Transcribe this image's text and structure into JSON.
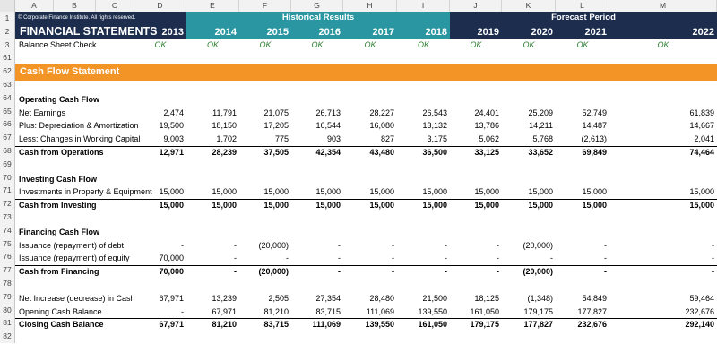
{
  "colors": {
    "navy": "#1c2d4e",
    "teal": "#2996a2",
    "orange": "#f29526",
    "ok_green": "#2e7d32"
  },
  "columns": [
    "A",
    "B",
    "C",
    "D",
    "E",
    "F",
    "G",
    "H",
    "I",
    "J",
    "K",
    "L",
    "M"
  ],
  "header": {
    "copyright": "© Corporate Finance Institute. All rights reserved.",
    "historical": "Historical Results",
    "forecast": "Forecast Period",
    "title": "FINANCIAL STATEMENTS",
    "years": [
      "2013",
      "2014",
      "2015",
      "2016",
      "2017",
      "2018",
      "2019",
      "2020",
      "2021",
      "2022"
    ]
  },
  "check": {
    "label": "Balance Sheet Check",
    "values": [
      "OK",
      "OK",
      "OK",
      "OK",
      "OK",
      "OK",
      "OK",
      "OK",
      "OK",
      "OK"
    ]
  },
  "section_title": "Cash Flow Statement",
  "rows": [
    {
      "num": "1"
    },
    {
      "num": "2"
    },
    {
      "num": "3"
    },
    {
      "num": "61"
    },
    {
      "num": "62"
    },
    {
      "num": "63"
    },
    {
      "num": "64"
    },
    {
      "num": "65"
    },
    {
      "num": "66"
    },
    {
      "num": "67"
    },
    {
      "num": "68"
    },
    {
      "num": "69"
    },
    {
      "num": "70"
    },
    {
      "num": "71"
    },
    {
      "num": "72"
    },
    {
      "num": "73"
    },
    {
      "num": "74"
    },
    {
      "num": "75"
    },
    {
      "num": "76"
    },
    {
      "num": "77"
    },
    {
      "num": "78"
    },
    {
      "num": "79"
    },
    {
      "num": "80"
    },
    {
      "num": "81"
    },
    {
      "num": "82"
    }
  ],
  "operating": {
    "title": "Operating Cash Flow",
    "lines": [
      {
        "label": "Net Earnings",
        "values": [
          "2,474",
          "11,791",
          "21,075",
          "26,713",
          "28,227",
          "26,543",
          "24,401",
          "25,209",
          "52,749",
          "61,839"
        ]
      },
      {
        "label": "Plus: Depreciation & Amortization",
        "values": [
          "19,500",
          "18,150",
          "17,205",
          "16,544",
          "16,080",
          "13,132",
          "13,786",
          "14,211",
          "14,487",
          "14,667"
        ]
      },
      {
        "label": "Less: Changes in Working Capital",
        "values": [
          "9,003",
          "1,702",
          "775",
          "903",
          "827",
          "3,175",
          "5,062",
          "5,768",
          "(2,613)",
          "2,041"
        ]
      }
    ],
    "total": {
      "label": "Cash from Operations",
      "values": [
        "12,971",
        "28,239",
        "37,505",
        "42,354",
        "43,480",
        "36,500",
        "33,125",
        "33,652",
        "69,849",
        "74,464"
      ]
    }
  },
  "investing": {
    "title": "Investing Cash Flow",
    "lines": [
      {
        "label": "Investments in Property & Equipment",
        "values": [
          "15,000",
          "15,000",
          "15,000",
          "15,000",
          "15,000",
          "15,000",
          "15,000",
          "15,000",
          "15,000",
          "15,000"
        ]
      }
    ],
    "total": {
      "label": "Cash from Investing",
      "values": [
        "15,000",
        "15,000",
        "15,000",
        "15,000",
        "15,000",
        "15,000",
        "15,000",
        "15,000",
        "15,000",
        "15,000"
      ]
    }
  },
  "financing": {
    "title": "Financing Cash Flow",
    "lines": [
      {
        "label": "Issuance (repayment) of debt",
        "values": [
          "-",
          "-",
          "(20,000)",
          "-",
          "-",
          "-",
          "-",
          "(20,000)",
          "-",
          "-"
        ]
      },
      {
        "label": "Issuance (repayment) of equity",
        "values": [
          "70,000",
          "-",
          "-",
          "-",
          "-",
          "-",
          "-",
          "-",
          "-",
          "-"
        ]
      }
    ],
    "total": {
      "label": "Cash from Financing",
      "values": [
        "70,000",
        "-",
        "(20,000)",
        "-",
        "-",
        "-",
        "-",
        "(20,000)",
        "-",
        "-"
      ]
    }
  },
  "summary": {
    "lines": [
      {
        "label": "Net Increase (decrease) in Cash",
        "values": [
          "67,971",
          "13,239",
          "2,505",
          "27,354",
          "28,480",
          "21,500",
          "18,125",
          "(1,348)",
          "54,849",
          "59,464"
        ]
      },
      {
        "label": "Opening Cash Balance",
        "values": [
          "-",
          "67,971",
          "81,210",
          "83,715",
          "111,069",
          "139,550",
          "161,050",
          "179,175",
          "177,827",
          "232,676"
        ]
      }
    ],
    "total": {
      "label": "Closing Cash Balance",
      "values": [
        "67,971",
        "81,210",
        "83,715",
        "111,069",
        "139,550",
        "161,050",
        "179,175",
        "177,827",
        "232,676",
        "292,140"
      ]
    }
  }
}
